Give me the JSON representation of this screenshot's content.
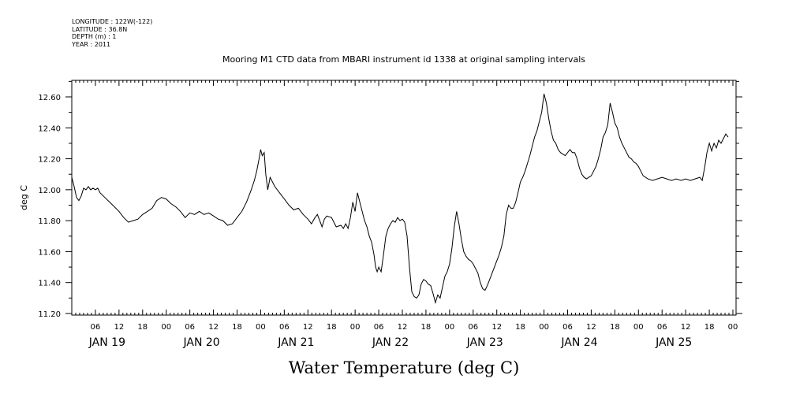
{
  "header": {
    "longitude": "LONGITUDE : 122W(-122)",
    "latitude": "LATITUDE : 36.8N",
    "depth": "DEPTH (m) : 1",
    "year": "YEAR : 2011"
  },
  "colors": {
    "line": "#000000",
    "background": "#ffffff"
  },
  "chart_data": {
    "type": "line",
    "title": "Mooring M1 CTD data from MBARI instrument id 1338 at original sampling intervals",
    "xlabel": "Water Temperature (deg C)",
    "ylabel": "deg C",
    "ylim": [
      11.2,
      12.7
    ],
    "xlim_hours": [
      0,
      168
    ],
    "y_ticks": [
      "11.20",
      "11.40",
      "11.60",
      "11.80",
      "12.00",
      "12.20",
      "12.40",
      "12.60"
    ],
    "x_hour_ticks": [
      {
        "label": "06",
        "hour": 6
      },
      {
        "label": "12",
        "hour": 12
      },
      {
        "label": "18",
        "hour": 18
      },
      {
        "label": "00",
        "hour": 24
      },
      {
        "label": "06",
        "hour": 30
      },
      {
        "label": "12",
        "hour": 36
      },
      {
        "label": "18",
        "hour": 42
      },
      {
        "label": "00",
        "hour": 48
      },
      {
        "label": "06",
        "hour": 54
      },
      {
        "label": "12",
        "hour": 60
      },
      {
        "label": "18",
        "hour": 66
      },
      {
        "label": "00",
        "hour": 72
      },
      {
        "label": "06",
        "hour": 78
      },
      {
        "label": "12",
        "hour": 84
      },
      {
        "label": "18",
        "hour": 90
      },
      {
        "label": "00",
        "hour": 96
      },
      {
        "label": "06",
        "hour": 102
      },
      {
        "label": "12",
        "hour": 108
      },
      {
        "label": "18",
        "hour": 114
      },
      {
        "label": "00",
        "hour": 120
      },
      {
        "label": "06",
        "hour": 126
      },
      {
        "label": "12",
        "hour": 132
      },
      {
        "label": "18",
        "hour": 138
      },
      {
        "label": "00",
        "hour": 144
      },
      {
        "label": "06",
        "hour": 150
      },
      {
        "label": "12",
        "hour": 156
      },
      {
        "label": "18",
        "hour": 162
      },
      {
        "label": "00",
        "hour": 168
      }
    ],
    "day_labels": [
      {
        "label": "JAN 19",
        "hour": 9
      },
      {
        "label": "JAN 20",
        "hour": 33
      },
      {
        "label": "JAN 21",
        "hour": 57
      },
      {
        "label": "JAN 22",
        "hour": 81
      },
      {
        "label": "JAN 23",
        "hour": 105
      },
      {
        "label": "JAN 24",
        "hour": 129
      },
      {
        "label": "JAN 25",
        "hour": 153
      }
    ],
    "series": [
      {
        "values_hour_temp": [
          [
            0.0,
            12.08
          ],
          [
            0.6,
            12.02
          ],
          [
            1.2,
            11.95
          ],
          [
            1.8,
            11.93
          ],
          [
            2.4,
            11.96
          ],
          [
            3.0,
            12.01
          ],
          [
            3.6,
            12.0
          ],
          [
            4.2,
            12.02
          ],
          [
            4.8,
            12.0
          ],
          [
            5.4,
            12.01
          ],
          [
            6.0,
            12.0
          ],
          [
            6.6,
            12.01
          ],
          [
            7.2,
            11.98
          ],
          [
            8.4,
            11.95
          ],
          [
            10.0,
            11.91
          ],
          [
            12.0,
            11.86
          ],
          [
            13.2,
            11.82
          ],
          [
            14.4,
            11.79
          ],
          [
            15.6,
            11.8
          ],
          [
            16.8,
            11.81
          ],
          [
            18.0,
            11.84
          ],
          [
            19.2,
            11.86
          ],
          [
            20.4,
            11.88
          ],
          [
            21.6,
            11.93
          ],
          [
            22.8,
            11.95
          ],
          [
            24.0,
            11.94
          ],
          [
            25.2,
            11.91
          ],
          [
            26.4,
            11.89
          ],
          [
            27.6,
            11.86
          ],
          [
            28.8,
            11.82
          ],
          [
            30.0,
            11.85
          ],
          [
            31.2,
            11.84
          ],
          [
            32.4,
            11.86
          ],
          [
            33.6,
            11.84
          ],
          [
            34.8,
            11.85
          ],
          [
            36.0,
            11.83
          ],
          [
            37.2,
            11.81
          ],
          [
            38.4,
            11.8
          ],
          [
            39.6,
            11.77
          ],
          [
            40.8,
            11.78
          ],
          [
            42.0,
            11.82
          ],
          [
            43.2,
            11.86
          ],
          [
            44.4,
            11.92
          ],
          [
            45.6,
            12.0
          ],
          [
            46.4,
            12.06
          ],
          [
            47.0,
            12.12
          ],
          [
            47.6,
            12.2
          ],
          [
            48.0,
            12.26
          ],
          [
            48.4,
            12.22
          ],
          [
            48.9,
            12.24
          ],
          [
            49.3,
            12.1
          ],
          [
            49.8,
            12.0
          ],
          [
            50.4,
            12.08
          ],
          [
            51.0,
            12.05
          ],
          [
            51.6,
            12.02
          ],
          [
            52.8,
            11.98
          ],
          [
            54.0,
            11.94
          ],
          [
            55.2,
            11.9
          ],
          [
            56.4,
            11.87
          ],
          [
            57.6,
            11.88
          ],
          [
            58.8,
            11.84
          ],
          [
            60.0,
            11.81
          ],
          [
            60.9,
            11.78
          ],
          [
            61.8,
            11.82
          ],
          [
            62.4,
            11.84
          ],
          [
            63.0,
            11.8
          ],
          [
            63.6,
            11.76
          ],
          [
            64.2,
            11.81
          ],
          [
            64.8,
            11.83
          ],
          [
            66.0,
            11.82
          ],
          [
            66.6,
            11.79
          ],
          [
            67.2,
            11.76
          ],
          [
            68.4,
            11.77
          ],
          [
            69.0,
            11.75
          ],
          [
            69.6,
            11.78
          ],
          [
            70.2,
            11.75
          ],
          [
            70.8,
            11.82
          ],
          [
            71.4,
            11.92
          ],
          [
            72.0,
            11.86
          ],
          [
            72.6,
            11.98
          ],
          [
            73.2,
            11.92
          ],
          [
            73.8,
            11.86
          ],
          [
            74.4,
            11.8
          ],
          [
            75.0,
            11.76
          ],
          [
            75.6,
            11.7
          ],
          [
            76.2,
            11.66
          ],
          [
            76.8,
            11.58
          ],
          [
            77.2,
            11.5
          ],
          [
            77.6,
            11.47
          ],
          [
            78.0,
            11.5
          ],
          [
            78.6,
            11.47
          ],
          [
            79.2,
            11.58
          ],
          [
            79.8,
            11.7
          ],
          [
            80.4,
            11.75
          ],
          [
            81.0,
            11.78
          ],
          [
            81.6,
            11.8
          ],
          [
            82.2,
            11.79
          ],
          [
            82.8,
            11.82
          ],
          [
            83.4,
            11.8
          ],
          [
            84.0,
            11.81
          ],
          [
            84.6,
            11.79
          ],
          [
            85.2,
            11.7
          ],
          [
            85.8,
            11.5
          ],
          [
            86.4,
            11.34
          ],
          [
            87.0,
            11.31
          ],
          [
            87.6,
            11.3
          ],
          [
            88.2,
            11.32
          ],
          [
            88.8,
            11.39
          ],
          [
            89.4,
            11.42
          ],
          [
            90.0,
            11.41
          ],
          [
            90.6,
            11.39
          ],
          [
            91.2,
            11.38
          ],
          [
            91.8,
            11.33
          ],
          [
            92.4,
            11.27
          ],
          [
            93.0,
            11.32
          ],
          [
            93.6,
            11.3
          ],
          [
            94.2,
            11.37
          ],
          [
            94.8,
            11.44
          ],
          [
            95.4,
            11.47
          ],
          [
            96.0,
            11.52
          ],
          [
            96.6,
            11.62
          ],
          [
            97.2,
            11.76
          ],
          [
            97.8,
            11.86
          ],
          [
            98.4,
            11.78
          ],
          [
            99.0,
            11.68
          ],
          [
            99.6,
            11.6
          ],
          [
            100.2,
            11.57
          ],
          [
            100.8,
            11.55
          ],
          [
            101.4,
            11.54
          ],
          [
            102.0,
            11.52
          ],
          [
            102.6,
            11.49
          ],
          [
            103.2,
            11.46
          ],
          [
            103.8,
            11.4
          ],
          [
            104.4,
            11.36
          ],
          [
            105.0,
            11.35
          ],
          [
            105.6,
            11.38
          ],
          [
            106.2,
            11.42
          ],
          [
            106.8,
            11.46
          ],
          [
            107.4,
            11.5
          ],
          [
            108.0,
            11.54
          ],
          [
            108.6,
            11.58
          ],
          [
            109.2,
            11.63
          ],
          [
            109.8,
            11.7
          ],
          [
            110.4,
            11.84
          ],
          [
            111.0,
            11.9
          ],
          [
            111.6,
            11.88
          ],
          [
            112.2,
            11.88
          ],
          [
            112.8,
            11.92
          ],
          [
            113.4,
            11.98
          ],
          [
            114.0,
            12.05
          ],
          [
            114.6,
            12.08
          ],
          [
            115.2,
            12.12
          ],
          [
            115.8,
            12.17
          ],
          [
            116.4,
            12.22
          ],
          [
            117.0,
            12.28
          ],
          [
            117.6,
            12.34
          ],
          [
            118.2,
            12.38
          ],
          [
            118.8,
            12.44
          ],
          [
            119.4,
            12.5
          ],
          [
            120.0,
            12.62
          ],
          [
            120.6,
            12.56
          ],
          [
            121.2,
            12.46
          ],
          [
            121.8,
            12.38
          ],
          [
            122.4,
            12.32
          ],
          [
            123.0,
            12.3
          ],
          [
            123.6,
            12.26
          ],
          [
            124.2,
            12.24
          ],
          [
            124.8,
            12.23
          ],
          [
            125.4,
            12.22
          ],
          [
            126.0,
            12.24
          ],
          [
            126.6,
            12.26
          ],
          [
            127.2,
            12.24
          ],
          [
            127.8,
            12.24
          ],
          [
            128.4,
            12.2
          ],
          [
            129.0,
            12.14
          ],
          [
            129.6,
            12.1
          ],
          [
            130.2,
            12.08
          ],
          [
            130.8,
            12.07
          ],
          [
            131.4,
            12.08
          ],
          [
            132.0,
            12.09
          ],
          [
            132.6,
            12.12
          ],
          [
            133.2,
            12.15
          ],
          [
            133.8,
            12.2
          ],
          [
            134.4,
            12.26
          ],
          [
            135.0,
            12.34
          ],
          [
            135.6,
            12.37
          ],
          [
            136.2,
            12.42
          ],
          [
            136.8,
            12.56
          ],
          [
            137.4,
            12.5
          ],
          [
            138.0,
            12.43
          ],
          [
            138.6,
            12.4
          ],
          [
            139.2,
            12.34
          ],
          [
            139.8,
            12.3
          ],
          [
            140.4,
            12.27
          ],
          [
            141.0,
            12.24
          ],
          [
            141.6,
            12.21
          ],
          [
            142.2,
            12.2
          ],
          [
            142.8,
            12.18
          ],
          [
            143.4,
            12.17
          ],
          [
            144.0,
            12.15
          ],
          [
            144.6,
            12.12
          ],
          [
            145.2,
            12.09
          ],
          [
            146.4,
            12.07
          ],
          [
            147.6,
            12.06
          ],
          [
            148.8,
            12.07
          ],
          [
            150.0,
            12.08
          ],
          [
            151.2,
            12.07
          ],
          [
            152.4,
            12.06
          ],
          [
            153.6,
            12.07
          ],
          [
            154.8,
            12.06
          ],
          [
            156.0,
            12.07
          ],
          [
            157.2,
            12.06
          ],
          [
            158.4,
            12.07
          ],
          [
            159.6,
            12.08
          ],
          [
            160.2,
            12.06
          ],
          [
            160.8,
            12.14
          ],
          [
            161.4,
            12.24
          ],
          [
            162.0,
            12.3
          ],
          [
            162.6,
            12.25
          ],
          [
            163.2,
            12.3
          ],
          [
            163.8,
            12.27
          ],
          [
            164.4,
            12.32
          ],
          [
            165.0,
            12.3
          ],
          [
            165.6,
            12.33
          ],
          [
            166.2,
            12.36
          ],
          [
            166.8,
            12.34
          ]
        ]
      }
    ]
  }
}
